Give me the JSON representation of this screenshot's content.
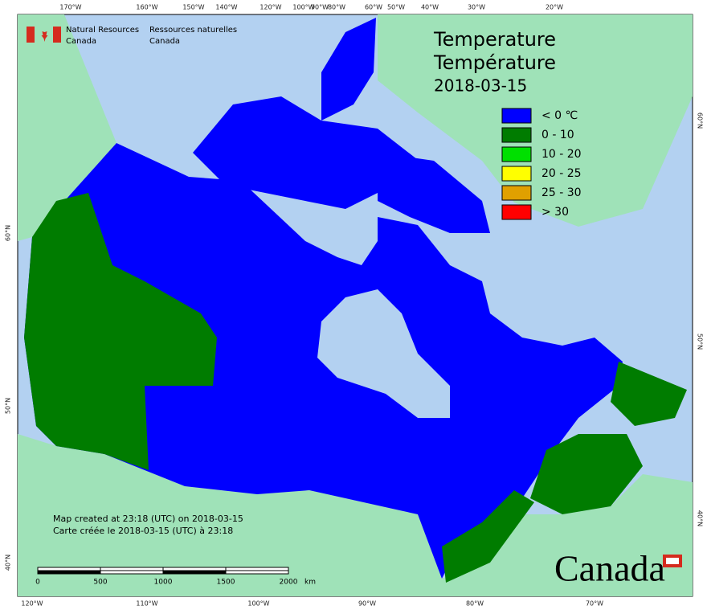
{
  "header": {
    "org_en": "Natural Resources",
    "org_en2": "Canada",
    "org_fr": "Ressources naturelles",
    "org_fr2": "Canada"
  },
  "title": {
    "en": "Temperature",
    "fr": "Température",
    "date": "2018-03-15"
  },
  "legend": [
    {
      "label": "< 0 ℃",
      "color": "#0000ff"
    },
    {
      "label": "0 - 10",
      "color": "#007c00"
    },
    {
      "label": "10 - 20",
      "color": "#00e000"
    },
    {
      "label": "20 - 25",
      "color": "#ffff00"
    },
    {
      "label": "25 - 30",
      "color": "#e0a000"
    },
    {
      "label": "> 30",
      "color": "#ff0000"
    }
  ],
  "top_longitudes": [
    "170°W",
    "160°W",
    "150°W",
    "140°W",
    "120°W",
    "100°W",
    "90°W",
    "80°W",
    "60°W",
    "50°W",
    "40°W",
    "30°W",
    "20°W"
  ],
  "bottom_longitudes": [
    "120°W",
    "110°W",
    "100°W",
    "90°W",
    "80°W",
    "70°W"
  ],
  "left_latitudes": [
    "60°N",
    "50°N",
    "40°N"
  ],
  "right_latitudes": [
    "60°N",
    "50°N",
    "40°N"
  ],
  "credits": [
    "Map created at 23:18 (UTC) on 2018-03-15",
    "Carte créée le 2018-03-15 (UTC) à 23:18"
  ],
  "scale_bar": {
    "labels": [
      "0",
      "500",
      "1000",
      "1500",
      "2000"
    ],
    "unit": "km"
  },
  "wordmark": "Canada"
}
